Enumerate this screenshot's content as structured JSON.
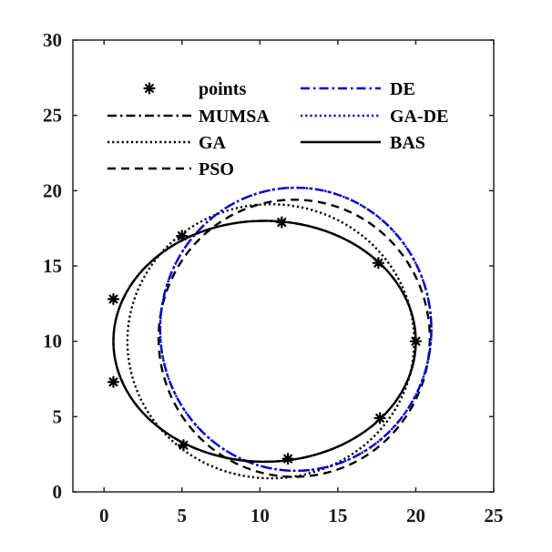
{
  "chart_data": {
    "type": "line",
    "title": "",
    "xlabel": "",
    "ylabel": "",
    "xlim": [
      -2,
      25
    ],
    "ylim": [
      0,
      30
    ],
    "xticks": [
      "0",
      "5",
      "10",
      "15",
      "20",
      "25"
    ],
    "yticks": [
      "0",
      "5",
      "10",
      "15",
      "20",
      "25",
      "30"
    ],
    "grid": false,
    "legend_placement": "top",
    "points": {
      "name": "points",
      "x": [
        0.6,
        0.6,
        5.0,
        5.1,
        11.4,
        11.8,
        17.6,
        17.7,
        20.0
      ],
      "y": [
        12.8,
        7.3,
        17.0,
        3.1,
        17.9,
        2.2,
        15.2,
        4.9,
        10.0
      ]
    },
    "series": [
      {
        "name": "MUMSA",
        "shape": "ellipse",
        "center": [
          10.3,
          10.0
        ],
        "radii": [
          9.7,
          8.0
        ],
        "color": "#000000",
        "dash": "dash-dot"
      },
      {
        "name": "GA",
        "shape": "ellipse",
        "center": [
          10.7,
          10.0
        ],
        "radii": [
          9.2,
          9.1
        ],
        "color": "#000000",
        "dash": "dotted"
      },
      {
        "name": "PSO",
        "shape": "ellipse",
        "center": [
          12.2,
          10.2
        ],
        "radii": [
          8.7,
          9.2
        ],
        "color": "#000000",
        "dash": "dashed"
      },
      {
        "name": "DE",
        "shape": "ellipse",
        "center": [
          12.3,
          10.8
        ],
        "radii": [
          8.7,
          9.4
        ],
        "color": "#0000cc",
        "dash": "dash-dot"
      },
      {
        "name": "GA-DE",
        "shape": "ellipse",
        "center": [
          12.3,
          10.8
        ],
        "radii": [
          8.7,
          9.4
        ],
        "color": "#0000cc",
        "dash": "dotted"
      },
      {
        "name": "BAS",
        "shape": "ellipse",
        "center": [
          10.3,
          10.0
        ],
        "radii": [
          9.7,
          8.0
        ],
        "color": "#000000",
        "dash": "solid"
      }
    ]
  }
}
